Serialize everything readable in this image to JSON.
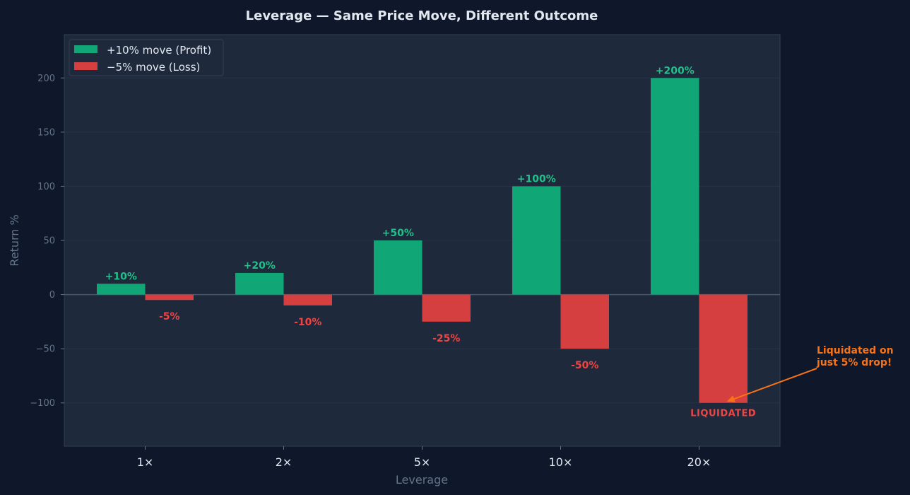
{
  "colors": {
    "background": "#0f172a",
    "plot_bg": "#1e293b",
    "profit": "#10a676",
    "loss": "#d63f3f",
    "profit_label": "#22c08a",
    "loss_label": "#ef4444",
    "annotation": "#f97316",
    "title": "#e2e8f0",
    "tick": "#64748b",
    "axis_label": "#64748b",
    "xtick": "#e2e8f0",
    "grid": "#334155",
    "legend_text": "#e2e8f0"
  },
  "chart_data": {
    "type": "bar",
    "title": "Leverage — Same Price Move, Different Outcome",
    "xlabel": "Leverage",
    "ylabel": "Return %",
    "categories": [
      "1×",
      "2×",
      "5×",
      "10×",
      "20×"
    ],
    "series": [
      {
        "name": "+10% move (Profit)",
        "values": [
          10,
          20,
          50,
          100,
          200
        ],
        "labels": [
          "+10%",
          "+20%",
          "+50%",
          "+100%",
          "+200%"
        ]
      },
      {
        "name": "−5% move (Loss)",
        "values": [
          -5,
          -10,
          -25,
          -50,
          -100
        ],
        "labels": [
          "-5%",
          "-10%",
          "-25%",
          "-50%",
          "LIQUIDATED"
        ]
      }
    ],
    "ylim": [
      -140,
      240
    ],
    "yticks": [
      200,
      150,
      100,
      50,
      0,
      -50,
      -100
    ],
    "ytick_labels": [
      "200",
      "150",
      "100",
      "50",
      "0",
      "−50",
      "−100"
    ],
    "grid": true,
    "legend_position": "top-left",
    "annotation": {
      "text_lines": [
        "Liquidated on",
        "just 5% drop!"
      ],
      "target_category": "20×",
      "target_value": -100
    }
  }
}
